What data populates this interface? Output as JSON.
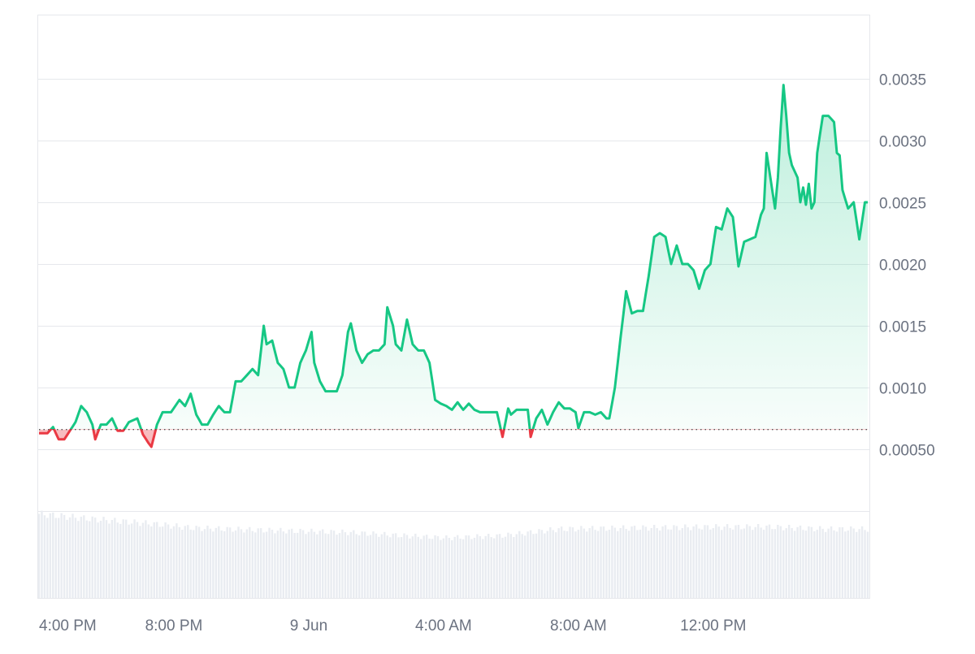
{
  "chart_data": {
    "type": "area",
    "baseline": 0.00066,
    "ylim": [
      0.00066,
      0.0039
    ],
    "grid": true,
    "colors": {
      "up": "#16c784",
      "down": "#ea3943",
      "grid": "#e6e8ec",
      "volume": "#e9ecf1",
      "baseline": "#555555"
    },
    "yticks": [
      {
        "value": 0.0005,
        "label": "0.00050"
      },
      {
        "value": 0.001,
        "label": "0.0010"
      },
      {
        "value": 0.0015,
        "label": "0.0015"
      },
      {
        "value": 0.002,
        "label": "0.0020"
      },
      {
        "value": 0.0025,
        "label": "0.0025"
      },
      {
        "value": 0.003,
        "label": "0.0030"
      },
      {
        "value": 0.0035,
        "label": "0.0035"
      }
    ],
    "xticks": [
      {
        "label": "4:00 PM",
        "index": 0
      },
      {
        "label": "8:00 PM",
        "index": 48
      },
      {
        "label": "9 Jun",
        "index": 96
      },
      {
        "label": "4:00 AM",
        "index": 144
      },
      {
        "label": "8:00 AM",
        "index": 192
      },
      {
        "label": "12:00 PM",
        "index": 240
      }
    ],
    "price_keypoints": [
      [
        0,
        0.00063
      ],
      [
        3,
        0.00063
      ],
      [
        5,
        0.00068
      ],
      [
        7,
        0.00058
      ],
      [
        9,
        0.00058
      ],
      [
        11,
        0.00065
      ],
      [
        13,
        0.00072
      ],
      [
        15,
        0.00085
      ],
      [
        17,
        0.0008
      ],
      [
        19,
        0.0007
      ],
      [
        20,
        0.00058
      ],
      [
        22,
        0.0007
      ],
      [
        24,
        0.0007
      ],
      [
        26,
        0.00075
      ],
      [
        28,
        0.00065
      ],
      [
        30,
        0.00065
      ],
      [
        32,
        0.00072
      ],
      [
        35,
        0.00075
      ],
      [
        37,
        0.00062
      ],
      [
        39,
        0.00055
      ],
      [
        40,
        0.00052
      ],
      [
        42,
        0.0007
      ],
      [
        44,
        0.0008
      ],
      [
        47,
        0.0008
      ],
      [
        50,
        0.0009
      ],
      [
        52,
        0.00085
      ],
      [
        54,
        0.00095
      ],
      [
        56,
        0.00078
      ],
      [
        58,
        0.0007
      ],
      [
        60,
        0.0007
      ],
      [
        62,
        0.00078
      ],
      [
        64,
        0.00085
      ],
      [
        66,
        0.0008
      ],
      [
        68,
        0.0008
      ],
      [
        70,
        0.00105
      ],
      [
        72,
        0.00105
      ],
      [
        74,
        0.0011
      ],
      [
        76,
        0.00115
      ],
      [
        78,
        0.0011
      ],
      [
        80,
        0.0015
      ],
      [
        81,
        0.00135
      ],
      [
        83,
        0.00138
      ],
      [
        85,
        0.0012
      ],
      [
        87,
        0.00115
      ],
      [
        89,
        0.001
      ],
      [
        91,
        0.001
      ],
      [
        93,
        0.0012
      ],
      [
        95,
        0.0013
      ],
      [
        97,
        0.00145
      ],
      [
        98,
        0.0012
      ],
      [
        100,
        0.00105
      ],
      [
        102,
        0.00097
      ],
      [
        104,
        0.00097
      ],
      [
        106,
        0.00097
      ],
      [
        108,
        0.0011
      ],
      [
        110,
        0.00145
      ],
      [
        111,
        0.00152
      ],
      [
        113,
        0.0013
      ],
      [
        115,
        0.0012
      ],
      [
        117,
        0.00127
      ],
      [
        119,
        0.0013
      ],
      [
        121,
        0.0013
      ],
      [
        123,
        0.00135
      ],
      [
        124,
        0.00165
      ],
      [
        126,
        0.0015
      ],
      [
        127,
        0.00135
      ],
      [
        129,
        0.0013
      ],
      [
        131,
        0.00155
      ],
      [
        133,
        0.00135
      ],
      [
        135,
        0.0013
      ],
      [
        137,
        0.0013
      ],
      [
        139,
        0.0012
      ],
      [
        141,
        0.0009
      ],
      [
        143,
        0.00087
      ],
      [
        145,
        0.00085
      ],
      [
        147,
        0.00082
      ],
      [
        149,
        0.00088
      ],
      [
        151,
        0.00082
      ],
      [
        153,
        0.00087
      ],
      [
        155,
        0.00082
      ],
      [
        157,
        0.0008
      ],
      [
        159,
        0.0008
      ],
      [
        161,
        0.0008
      ],
      [
        163,
        0.0008
      ],
      [
        165,
        0.0006
      ],
      [
        167,
        0.00083
      ],
      [
        168,
        0.00078
      ],
      [
        170,
        0.00082
      ],
      [
        172,
        0.00082
      ],
      [
        174,
        0.00082
      ],
      [
        175,
        0.0006
      ],
      [
        177,
        0.00075
      ],
      [
        179,
        0.00082
      ],
      [
        181,
        0.0007
      ],
      [
        183,
        0.0008
      ],
      [
        185,
        0.00088
      ],
      [
        187,
        0.00083
      ],
      [
        189,
        0.00083
      ],
      [
        191,
        0.0008
      ],
      [
        192,
        0.00067
      ],
      [
        194,
        0.0008
      ],
      [
        196,
        0.0008
      ],
      [
        198,
        0.00078
      ],
      [
        200,
        0.0008
      ],
      [
        202,
        0.00075
      ],
      [
        203,
        0.00075
      ],
      [
        205,
        0.001
      ],
      [
        207,
        0.0014
      ],
      [
        209,
        0.00178
      ],
      [
        211,
        0.0016
      ],
      [
        213,
        0.00162
      ],
      [
        215,
        0.00162
      ],
      [
        217,
        0.0019
      ],
      [
        219,
        0.00222
      ],
      [
        221,
        0.00225
      ],
      [
        223,
        0.00222
      ],
      [
        225,
        0.002
      ],
      [
        227,
        0.00215
      ],
      [
        229,
        0.002
      ],
      [
        231,
        0.002
      ],
      [
        233,
        0.00195
      ],
      [
        235,
        0.0018
      ],
      [
        237,
        0.00195
      ],
      [
        239,
        0.002
      ],
      [
        241,
        0.0023
      ],
      [
        243,
        0.00228
      ],
      [
        245,
        0.00245
      ],
      [
        247,
        0.00238
      ],
      [
        249,
        0.00198
      ],
      [
        251,
        0.00218
      ],
      [
        253,
        0.0022
      ],
      [
        255,
        0.00222
      ],
      [
        257,
        0.0024
      ],
      [
        258,
        0.00245
      ],
      [
        259,
        0.0029
      ],
      [
        260,
        0.00275
      ],
      [
        261,
        0.0026
      ],
      [
        262,
        0.00245
      ],
      [
        263,
        0.0027
      ],
      [
        264,
        0.0031
      ],
      [
        265,
        0.00345
      ],
      [
        266,
        0.0032
      ],
      [
        267,
        0.0029
      ],
      [
        268,
        0.0028
      ],
      [
        270,
        0.0027
      ],
      [
        271,
        0.0025
      ],
      [
        272,
        0.00262
      ],
      [
        273,
        0.00248
      ],
      [
        274,
        0.00265
      ],
      [
        275,
        0.00245
      ],
      [
        276,
        0.0025
      ],
      [
        277,
        0.0029
      ],
      [
        278,
        0.00305
      ],
      [
        279,
        0.0032
      ],
      [
        281,
        0.0032
      ],
      [
        283,
        0.00315
      ],
      [
        284,
        0.0029
      ],
      [
        285,
        0.00288
      ],
      [
        286,
        0.0026
      ],
      [
        288,
        0.00245
      ],
      [
        290,
        0.0025
      ],
      [
        292,
        0.0022
      ],
      [
        294,
        0.0025
      ],
      [
        295,
        0.0025
      ]
    ],
    "volume_keypoints": [
      [
        0,
        0.77
      ],
      [
        20,
        0.72
      ],
      [
        40,
        0.68
      ],
      [
        55,
        0.64
      ],
      [
        80,
        0.62
      ],
      [
        110,
        0.6
      ],
      [
        130,
        0.57
      ],
      [
        145,
        0.55
      ],
      [
        165,
        0.57
      ],
      [
        185,
        0.63
      ],
      [
        210,
        0.64
      ],
      [
        240,
        0.65
      ],
      [
        260,
        0.65
      ],
      [
        280,
        0.63
      ],
      [
        295,
        0.63
      ]
    ]
  }
}
